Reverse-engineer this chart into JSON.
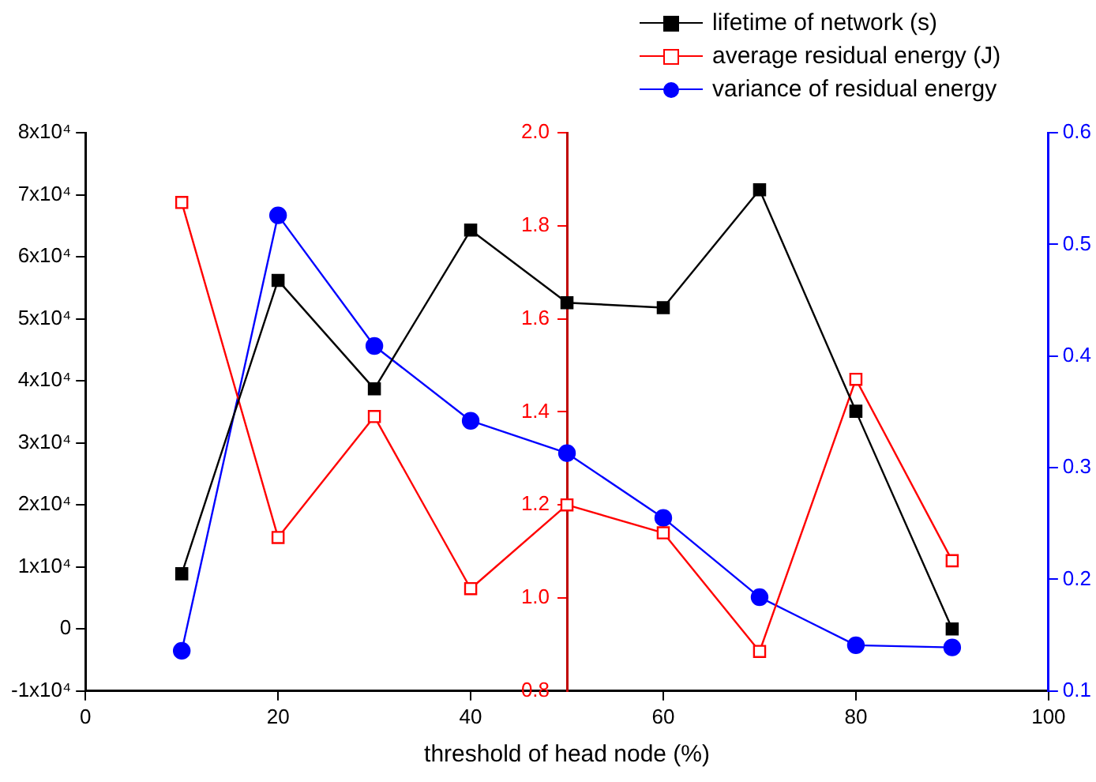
{
  "chart_data": {
    "type": "line",
    "xlabel": "threshold of head node (%)",
    "x": [
      10,
      20,
      30,
      40,
      50,
      60,
      70,
      80,
      90
    ],
    "xlim": [
      0,
      100
    ],
    "xticks": [
      0,
      20,
      40,
      60,
      80,
      100
    ],
    "ylim": [
      -10000,
      80000
    ],
    "yticks": [
      {
        "value": -10000,
        "label": "-1x10⁴"
      },
      0,
      {
        "value": 10000,
        "label": "1x10⁴"
      },
      {
        "value": 20000,
        "label": "2x10⁴"
      },
      {
        "value": 30000,
        "label": "3x10⁴"
      },
      {
        "value": 40000,
        "label": "4x10⁴"
      },
      {
        "value": 50000,
        "label": "5x10⁴"
      },
      {
        "value": 60000,
        "label": "6x10⁴"
      },
      {
        "value": 70000,
        "label": "7x10⁴"
      },
      {
        "value": 80000,
        "label": "8x10⁴"
      }
    ],
    "y2lim": [
      0.8,
      2.0
    ],
    "y2ticks": [
      {
        "value": 0.8,
        "label": "0.8"
      },
      {
        "value": 1.0,
        "label": "1.0"
      },
      1.2,
      1.4,
      1.6,
      1.8,
      {
        "value": 2.0,
        "label": "2.0"
      }
    ],
    "y3lim": [
      0.1,
      0.6
    ],
    "y3ticks": [
      0.1,
      0.2,
      0.3,
      0.4,
      0.5,
      0.6
    ],
    "grid": false,
    "legend": "top right",
    "line_style": "solid",
    "series": [
      {
        "name": "lifetime of network (s)",
        "color": "#000000",
        "marker": "square",
        "values": [
          8900,
          56200,
          38700,
          64300,
          52600,
          51800,
          70800,
          35100,
          0
        ]
      },
      {
        "name": "average residual energy (J)",
        "color": "#ff0000",
        "marker": "square",
        "axis": "y2",
        "values": [
          1.85,
          1.13,
          1.39,
          1.02,
          1.2,
          1.14,
          0.885,
          1.47,
          1.08
        ]
      },
      {
        "name": "variance of residual energy",
        "color": "#0000ff",
        "marker": "circle",
        "axis": "y3",
        "values": [
          0.136,
          0.526,
          0.409,
          0.342,
          0.313,
          0.255,
          0.184,
          0.141,
          0.139
        ]
      }
    ]
  }
}
